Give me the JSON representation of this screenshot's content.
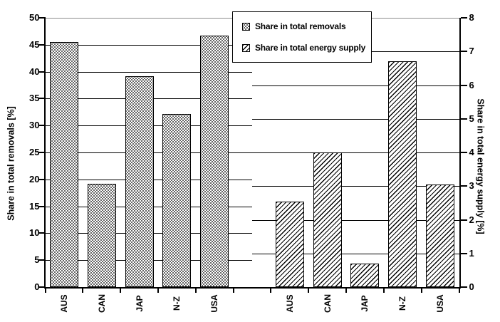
{
  "colors": {
    "ink": "#000000",
    "background": "#ffffff",
    "top_gridline": "#8c8c8c"
  },
  "legend": {
    "items": [
      {
        "label": "Share in total removals",
        "pattern": "dots"
      },
      {
        "label": "Share in total energy supply",
        "pattern": "hatch"
      }
    ]
  },
  "chart_data": {
    "type": "bar",
    "title": "",
    "categories": [
      "AUS",
      "CAN",
      "JAP",
      "N-Z",
      "USA"
    ],
    "series": [
      {
        "name": "Share in total removals",
        "short": "removals",
        "axis": "left",
        "pattern": "dots",
        "values": [
          45.5,
          19.2,
          39.1,
          32.1,
          46.7
        ]
      },
      {
        "name": "Share in total energy supply",
        "short": "energy",
        "axis": "right",
        "pattern": "hatch",
        "values": [
          2.55,
          4.0,
          0.7,
          6.7,
          3.05
        ]
      }
    ],
    "left_axis": {
      "label": "Share in total removals [%]",
      "min": 0,
      "max": 50,
      "step": 5,
      "ticks": [
        "0",
        "5",
        "10",
        "15",
        "20",
        "25",
        "30",
        "35",
        "40",
        "45",
        "50"
      ]
    },
    "right_axis": {
      "label": "Share in total energy supply [%]",
      "min": 0,
      "max": 8,
      "step": 1,
      "ticks": [
        "0",
        "1",
        "2",
        "3",
        "4",
        "5",
        "6",
        "7",
        "8"
      ]
    },
    "layout": {
      "grid": "on",
      "legend_position": "top-center",
      "groups": "two separated bar groups, left group scaled to left axis, right group scaled to right axis"
    }
  }
}
